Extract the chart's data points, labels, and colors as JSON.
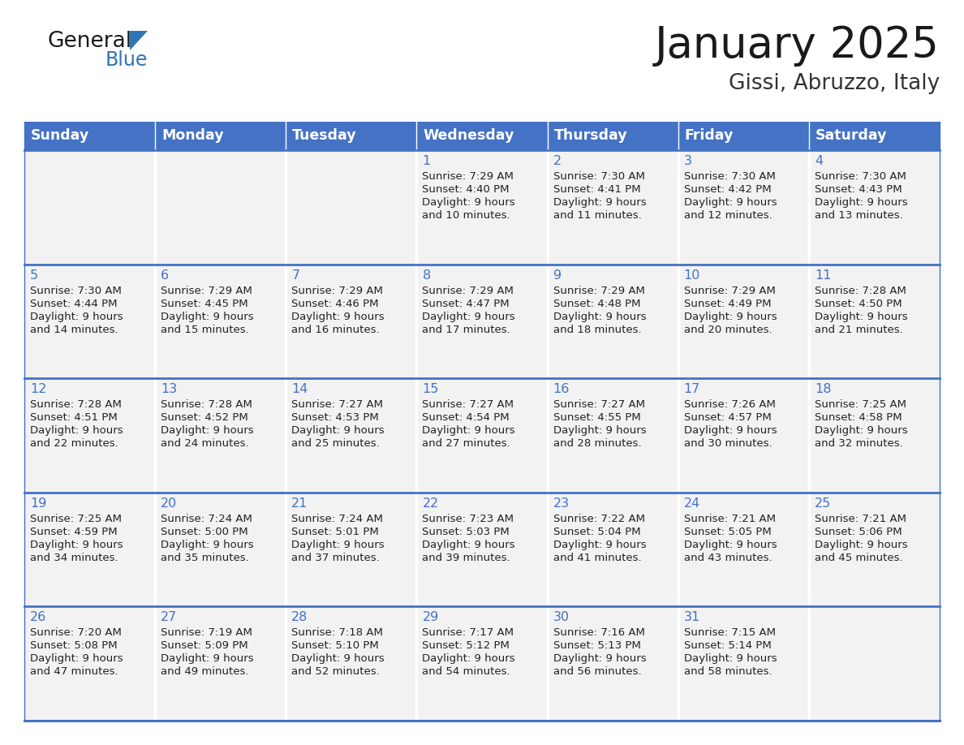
{
  "title": "January 2025",
  "subtitle": "Gissi, Abruzzo, Italy",
  "days_of_week": [
    "Sunday",
    "Monday",
    "Tuesday",
    "Wednesday",
    "Thursday",
    "Friday",
    "Saturday"
  ],
  "header_bg": "#4472C4",
  "header_text": "#FFFFFF",
  "cell_bg": "#F2F2F2",
  "cell_border_color": "#4472C4",
  "day_number_color": "#4472C4",
  "cell_text_color": "#222222",
  "title_color": "#1a1a1a",
  "subtitle_color": "#333333",
  "logo_general_color": "#1a1a1a",
  "logo_blue_color": "#2E75B6",
  "week_rows": [
    [
      {
        "day": "",
        "sunrise": "",
        "sunset": "",
        "daylight_line1": "",
        "daylight_line2": ""
      },
      {
        "day": "",
        "sunrise": "",
        "sunset": "",
        "daylight_line1": "",
        "daylight_line2": ""
      },
      {
        "day": "",
        "sunrise": "",
        "sunset": "",
        "daylight_line1": "",
        "daylight_line2": ""
      },
      {
        "day": "1",
        "sunrise": "Sunrise: 7:29 AM",
        "sunset": "Sunset: 4:40 PM",
        "daylight_line1": "Daylight: 9 hours",
        "daylight_line2": "and 10 minutes."
      },
      {
        "day": "2",
        "sunrise": "Sunrise: 7:30 AM",
        "sunset": "Sunset: 4:41 PM",
        "daylight_line1": "Daylight: 9 hours",
        "daylight_line2": "and 11 minutes."
      },
      {
        "day": "3",
        "sunrise": "Sunrise: 7:30 AM",
        "sunset": "Sunset: 4:42 PM",
        "daylight_line1": "Daylight: 9 hours",
        "daylight_line2": "and 12 minutes."
      },
      {
        "day": "4",
        "sunrise": "Sunrise: 7:30 AM",
        "sunset": "Sunset: 4:43 PM",
        "daylight_line1": "Daylight: 9 hours",
        "daylight_line2": "and 13 minutes."
      }
    ],
    [
      {
        "day": "5",
        "sunrise": "Sunrise: 7:30 AM",
        "sunset": "Sunset: 4:44 PM",
        "daylight_line1": "Daylight: 9 hours",
        "daylight_line2": "and 14 minutes."
      },
      {
        "day": "6",
        "sunrise": "Sunrise: 7:29 AM",
        "sunset": "Sunset: 4:45 PM",
        "daylight_line1": "Daylight: 9 hours",
        "daylight_line2": "and 15 minutes."
      },
      {
        "day": "7",
        "sunrise": "Sunrise: 7:29 AM",
        "sunset": "Sunset: 4:46 PM",
        "daylight_line1": "Daylight: 9 hours",
        "daylight_line2": "and 16 minutes."
      },
      {
        "day": "8",
        "sunrise": "Sunrise: 7:29 AM",
        "sunset": "Sunset: 4:47 PM",
        "daylight_line1": "Daylight: 9 hours",
        "daylight_line2": "and 17 minutes."
      },
      {
        "day": "9",
        "sunrise": "Sunrise: 7:29 AM",
        "sunset": "Sunset: 4:48 PM",
        "daylight_line1": "Daylight: 9 hours",
        "daylight_line2": "and 18 minutes."
      },
      {
        "day": "10",
        "sunrise": "Sunrise: 7:29 AM",
        "sunset": "Sunset: 4:49 PM",
        "daylight_line1": "Daylight: 9 hours",
        "daylight_line2": "and 20 minutes."
      },
      {
        "day": "11",
        "sunrise": "Sunrise: 7:28 AM",
        "sunset": "Sunset: 4:50 PM",
        "daylight_line1": "Daylight: 9 hours",
        "daylight_line2": "and 21 minutes."
      }
    ],
    [
      {
        "day": "12",
        "sunrise": "Sunrise: 7:28 AM",
        "sunset": "Sunset: 4:51 PM",
        "daylight_line1": "Daylight: 9 hours",
        "daylight_line2": "and 22 minutes."
      },
      {
        "day": "13",
        "sunrise": "Sunrise: 7:28 AM",
        "sunset": "Sunset: 4:52 PM",
        "daylight_line1": "Daylight: 9 hours",
        "daylight_line2": "and 24 minutes."
      },
      {
        "day": "14",
        "sunrise": "Sunrise: 7:27 AM",
        "sunset": "Sunset: 4:53 PM",
        "daylight_line1": "Daylight: 9 hours",
        "daylight_line2": "and 25 minutes."
      },
      {
        "day": "15",
        "sunrise": "Sunrise: 7:27 AM",
        "sunset": "Sunset: 4:54 PM",
        "daylight_line1": "Daylight: 9 hours",
        "daylight_line2": "and 27 minutes."
      },
      {
        "day": "16",
        "sunrise": "Sunrise: 7:27 AM",
        "sunset": "Sunset: 4:55 PM",
        "daylight_line1": "Daylight: 9 hours",
        "daylight_line2": "and 28 minutes."
      },
      {
        "day": "17",
        "sunrise": "Sunrise: 7:26 AM",
        "sunset": "Sunset: 4:57 PM",
        "daylight_line1": "Daylight: 9 hours",
        "daylight_line2": "and 30 minutes."
      },
      {
        "day": "18",
        "sunrise": "Sunrise: 7:25 AM",
        "sunset": "Sunset: 4:58 PM",
        "daylight_line1": "Daylight: 9 hours",
        "daylight_line2": "and 32 minutes."
      }
    ],
    [
      {
        "day": "19",
        "sunrise": "Sunrise: 7:25 AM",
        "sunset": "Sunset: 4:59 PM",
        "daylight_line1": "Daylight: 9 hours",
        "daylight_line2": "and 34 minutes."
      },
      {
        "day": "20",
        "sunrise": "Sunrise: 7:24 AM",
        "sunset": "Sunset: 5:00 PM",
        "daylight_line1": "Daylight: 9 hours",
        "daylight_line2": "and 35 minutes."
      },
      {
        "day": "21",
        "sunrise": "Sunrise: 7:24 AM",
        "sunset": "Sunset: 5:01 PM",
        "daylight_line1": "Daylight: 9 hours",
        "daylight_line2": "and 37 minutes."
      },
      {
        "day": "22",
        "sunrise": "Sunrise: 7:23 AM",
        "sunset": "Sunset: 5:03 PM",
        "daylight_line1": "Daylight: 9 hours",
        "daylight_line2": "and 39 minutes."
      },
      {
        "day": "23",
        "sunrise": "Sunrise: 7:22 AM",
        "sunset": "Sunset: 5:04 PM",
        "daylight_line1": "Daylight: 9 hours",
        "daylight_line2": "and 41 minutes."
      },
      {
        "day": "24",
        "sunrise": "Sunrise: 7:21 AM",
        "sunset": "Sunset: 5:05 PM",
        "daylight_line1": "Daylight: 9 hours",
        "daylight_line2": "and 43 minutes."
      },
      {
        "day": "25",
        "sunrise": "Sunrise: 7:21 AM",
        "sunset": "Sunset: 5:06 PM",
        "daylight_line1": "Daylight: 9 hours",
        "daylight_line2": "and 45 minutes."
      }
    ],
    [
      {
        "day": "26",
        "sunrise": "Sunrise: 7:20 AM",
        "sunset": "Sunset: 5:08 PM",
        "daylight_line1": "Daylight: 9 hours",
        "daylight_line2": "and 47 minutes."
      },
      {
        "day": "27",
        "sunrise": "Sunrise: 7:19 AM",
        "sunset": "Sunset: 5:09 PM",
        "daylight_line1": "Daylight: 9 hours",
        "daylight_line2": "and 49 minutes."
      },
      {
        "day": "28",
        "sunrise": "Sunrise: 7:18 AM",
        "sunset": "Sunset: 5:10 PM",
        "daylight_line1": "Daylight: 9 hours",
        "daylight_line2": "and 52 minutes."
      },
      {
        "day": "29",
        "sunrise": "Sunrise: 7:17 AM",
        "sunset": "Sunset: 5:12 PM",
        "daylight_line1": "Daylight: 9 hours",
        "daylight_line2": "and 54 minutes."
      },
      {
        "day": "30",
        "sunrise": "Sunrise: 7:16 AM",
        "sunset": "Sunset: 5:13 PM",
        "daylight_line1": "Daylight: 9 hours",
        "daylight_line2": "and 56 minutes."
      },
      {
        "day": "31",
        "sunrise": "Sunrise: 7:15 AM",
        "sunset": "Sunset: 5:14 PM",
        "daylight_line1": "Daylight: 9 hours",
        "daylight_line2": "and 58 minutes."
      },
      {
        "day": "",
        "sunrise": "",
        "sunset": "",
        "daylight_line1": "",
        "daylight_line2": ""
      }
    ]
  ]
}
